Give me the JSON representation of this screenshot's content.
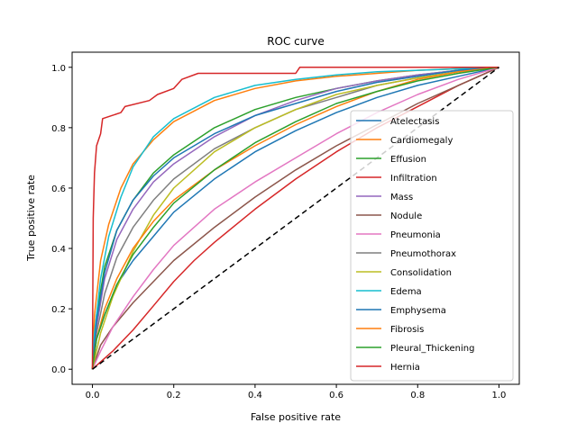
{
  "chart_data": {
    "type": "line",
    "title": "ROC curve",
    "xlabel": "False positive rate",
    "ylabel": "True positive rate",
    "xlim": [
      -0.05,
      1.05
    ],
    "ylim": [
      -0.05,
      1.05
    ],
    "x_ticks": [
      "0.0",
      "0.2",
      "0.4",
      "0.6",
      "0.8",
      "1.0"
    ],
    "y_ticks": [
      "0.0",
      "0.2",
      "0.4",
      "0.6",
      "0.8",
      "1.0"
    ],
    "grid": false,
    "legend_position": "lower-right",
    "baseline": {
      "style": "dashed",
      "color": "#000000",
      "points": [
        [
          0,
          0
        ],
        [
          1,
          1
        ]
      ]
    },
    "series": [
      {
        "name": "Atelectasis",
        "color": "#1f77b4",
        "points": [
          [
            0,
            0
          ],
          [
            0.01,
            0.1
          ],
          [
            0.03,
            0.18
          ],
          [
            0.06,
            0.28
          ],
          [
            0.1,
            0.36
          ],
          [
            0.15,
            0.44
          ],
          [
            0.2,
            0.52
          ],
          [
            0.3,
            0.63
          ],
          [
            0.4,
            0.72
          ],
          [
            0.5,
            0.79
          ],
          [
            0.6,
            0.85
          ],
          [
            0.7,
            0.9
          ],
          [
            0.8,
            0.94
          ],
          [
            0.9,
            0.97
          ],
          [
            1,
            1
          ]
        ]
      },
      {
        "name": "Cardiomegaly",
        "color": "#ff7f0e",
        "points": [
          [
            0,
            0
          ],
          [
            0.005,
            0.18
          ],
          [
            0.02,
            0.36
          ],
          [
            0.04,
            0.48
          ],
          [
            0.07,
            0.6
          ],
          [
            0.1,
            0.68
          ],
          [
            0.15,
            0.76
          ],
          [
            0.2,
            0.82
          ],
          [
            0.3,
            0.89
          ],
          [
            0.4,
            0.93
          ],
          [
            0.5,
            0.955
          ],
          [
            0.6,
            0.97
          ],
          [
            0.7,
            0.98
          ],
          [
            0.8,
            0.99
          ],
          [
            1,
            1
          ]
        ]
      },
      {
        "name": "Effusion",
        "color": "#2ca02c",
        "points": [
          [
            0,
            0
          ],
          [
            0.01,
            0.18
          ],
          [
            0.03,
            0.34
          ],
          [
            0.06,
            0.46
          ],
          [
            0.1,
            0.56
          ],
          [
            0.15,
            0.65
          ],
          [
            0.2,
            0.71
          ],
          [
            0.3,
            0.8
          ],
          [
            0.4,
            0.86
          ],
          [
            0.5,
            0.9
          ],
          [
            0.6,
            0.93
          ],
          [
            0.7,
            0.955
          ],
          [
            0.8,
            0.975
          ],
          [
            0.9,
            0.99
          ],
          [
            1,
            1
          ]
        ]
      },
      {
        "name": "Infiltration",
        "color": "#d62728",
        "points": [
          [
            0,
            0
          ],
          [
            0.05,
            0.06
          ],
          [
            0.1,
            0.13
          ],
          [
            0.15,
            0.21
          ],
          [
            0.2,
            0.29
          ],
          [
            0.25,
            0.36
          ],
          [
            0.3,
            0.42
          ],
          [
            0.4,
            0.53
          ],
          [
            0.5,
            0.63
          ],
          [
            0.6,
            0.72
          ],
          [
            0.7,
            0.8
          ],
          [
            0.8,
            0.87
          ],
          [
            0.9,
            0.94
          ],
          [
            1,
            1
          ]
        ]
      },
      {
        "name": "Mass",
        "color": "#9467bd",
        "points": [
          [
            0,
            0
          ],
          [
            0.01,
            0.14
          ],
          [
            0.03,
            0.3
          ],
          [
            0.06,
            0.43
          ],
          [
            0.1,
            0.53
          ],
          [
            0.15,
            0.62
          ],
          [
            0.2,
            0.68
          ],
          [
            0.3,
            0.77
          ],
          [
            0.4,
            0.84
          ],
          [
            0.5,
            0.89
          ],
          [
            0.6,
            0.93
          ],
          [
            0.7,
            0.955
          ],
          [
            0.8,
            0.975
          ],
          [
            0.9,
            0.99
          ],
          [
            1,
            1
          ]
        ]
      },
      {
        "name": "Nodule",
        "color": "#8c564b",
        "points": [
          [
            0,
            0
          ],
          [
            0.02,
            0.08
          ],
          [
            0.05,
            0.14
          ],
          [
            0.1,
            0.22
          ],
          [
            0.15,
            0.29
          ],
          [
            0.2,
            0.36
          ],
          [
            0.3,
            0.47
          ],
          [
            0.4,
            0.57
          ],
          [
            0.5,
            0.66
          ],
          [
            0.6,
            0.74
          ],
          [
            0.7,
            0.81
          ],
          [
            0.8,
            0.88
          ],
          [
            0.9,
            0.94
          ],
          [
            1,
            1
          ]
        ]
      },
      {
        "name": "Pneumonia",
        "color": "#e377c2",
        "points": [
          [
            0,
            0
          ],
          [
            0.02,
            0.06
          ],
          [
            0.05,
            0.14
          ],
          [
            0.1,
            0.24
          ],
          [
            0.15,
            0.33
          ],
          [
            0.2,
            0.41
          ],
          [
            0.3,
            0.53
          ],
          [
            0.4,
            0.62
          ],
          [
            0.5,
            0.7
          ],
          [
            0.6,
            0.78
          ],
          [
            0.7,
            0.85
          ],
          [
            0.8,
            0.91
          ],
          [
            0.9,
            0.96
          ],
          [
            1,
            1
          ]
        ]
      },
      {
        "name": "Pneumothorax",
        "color": "#7f7f7f",
        "points": [
          [
            0,
            0
          ],
          [
            0.01,
            0.12
          ],
          [
            0.03,
            0.25
          ],
          [
            0.06,
            0.37
          ],
          [
            0.1,
            0.47
          ],
          [
            0.15,
            0.56
          ],
          [
            0.2,
            0.63
          ],
          [
            0.3,
            0.73
          ],
          [
            0.4,
            0.8
          ],
          [
            0.5,
            0.86
          ],
          [
            0.6,
            0.9
          ],
          [
            0.7,
            0.94
          ],
          [
            0.8,
            0.965
          ],
          [
            0.9,
            0.985
          ],
          [
            1,
            1
          ]
        ]
      },
      {
        "name": "Consolidation",
        "color": "#bcbd22",
        "points": [
          [
            0,
            0
          ],
          [
            0.02,
            0.12
          ],
          [
            0.05,
            0.24
          ],
          [
            0.1,
            0.39
          ],
          [
            0.15,
            0.51
          ],
          [
            0.2,
            0.6
          ],
          [
            0.3,
            0.72
          ],
          [
            0.4,
            0.8
          ],
          [
            0.5,
            0.86
          ],
          [
            0.6,
            0.91
          ],
          [
            0.7,
            0.94
          ],
          [
            0.8,
            0.965
          ],
          [
            0.9,
            0.985
          ],
          [
            1,
            1
          ]
        ]
      },
      {
        "name": "Edema",
        "color": "#17becf",
        "points": [
          [
            0,
            0
          ],
          [
            0.005,
            0.12
          ],
          [
            0.02,
            0.3
          ],
          [
            0.04,
            0.44
          ],
          [
            0.07,
            0.57
          ],
          [
            0.1,
            0.67
          ],
          [
            0.15,
            0.77
          ],
          [
            0.2,
            0.83
          ],
          [
            0.3,
            0.9
          ],
          [
            0.4,
            0.94
          ],
          [
            0.5,
            0.96
          ],
          [
            0.6,
            0.975
          ],
          [
            0.7,
            0.985
          ],
          [
            0.8,
            0.99
          ],
          [
            1,
            1
          ]
        ]
      },
      {
        "name": "Emphysema",
        "color": "#1f77b4",
        "points": [
          [
            0,
            0
          ],
          [
            0.01,
            0.16
          ],
          [
            0.03,
            0.32
          ],
          [
            0.06,
            0.46
          ],
          [
            0.1,
            0.56
          ],
          [
            0.15,
            0.64
          ],
          [
            0.2,
            0.7
          ],
          [
            0.3,
            0.78
          ],
          [
            0.4,
            0.84
          ],
          [
            0.5,
            0.88
          ],
          [
            0.6,
            0.92
          ],
          [
            0.7,
            0.95
          ],
          [
            0.8,
            0.97
          ],
          [
            0.9,
            0.99
          ],
          [
            1,
            1
          ]
        ]
      },
      {
        "name": "Fibrosis",
        "color": "#ff7f0e",
        "points": [
          [
            0,
            0
          ],
          [
            0.01,
            0.1
          ],
          [
            0.03,
            0.2
          ],
          [
            0.06,
            0.3
          ],
          [
            0.1,
            0.4
          ],
          [
            0.15,
            0.49
          ],
          [
            0.2,
            0.56
          ],
          [
            0.3,
            0.66
          ],
          [
            0.4,
            0.74
          ],
          [
            0.5,
            0.81
          ],
          [
            0.6,
            0.87
          ],
          [
            0.7,
            0.92
          ],
          [
            0.8,
            0.96
          ],
          [
            0.9,
            0.985
          ],
          [
            1,
            1
          ]
        ]
      },
      {
        "name": "Pleural_Thickening",
        "color": "#2ca02c",
        "points": [
          [
            0,
            0
          ],
          [
            0.01,
            0.1
          ],
          [
            0.03,
            0.18
          ],
          [
            0.06,
            0.28
          ],
          [
            0.1,
            0.38
          ],
          [
            0.15,
            0.47
          ],
          [
            0.2,
            0.55
          ],
          [
            0.3,
            0.66
          ],
          [
            0.4,
            0.75
          ],
          [
            0.5,
            0.82
          ],
          [
            0.6,
            0.88
          ],
          [
            0.7,
            0.92
          ],
          [
            0.8,
            0.955
          ],
          [
            0.9,
            0.98
          ],
          [
            1,
            1
          ]
        ]
      },
      {
        "name": "Hernia",
        "color": "#d62728",
        "points": [
          [
            0,
            0
          ],
          [
            0.002,
            0.5
          ],
          [
            0.005,
            0.65
          ],
          [
            0.01,
            0.74
          ],
          [
            0.02,
            0.78
          ],
          [
            0.025,
            0.83
          ],
          [
            0.07,
            0.85
          ],
          [
            0.08,
            0.87
          ],
          [
            0.14,
            0.89
          ],
          [
            0.16,
            0.91
          ],
          [
            0.2,
            0.93
          ],
          [
            0.22,
            0.96
          ],
          [
            0.26,
            0.98
          ],
          [
            0.3,
            0.98
          ],
          [
            0.5,
            0.98
          ],
          [
            0.51,
            1
          ],
          [
            1,
            1
          ]
        ]
      }
    ]
  }
}
